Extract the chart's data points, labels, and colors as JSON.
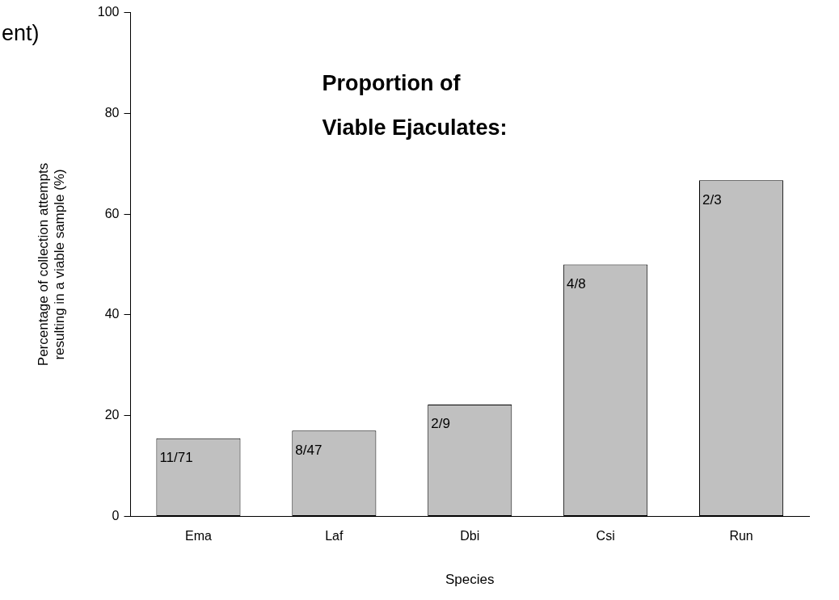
{
  "chart_data": {
    "type": "bar",
    "xlabel": "Species",
    "ylabel": "Percentage of collection attempts\nresulting in a viable sample (%)",
    "annotations": [
      "ent)",
      "Proportion of\nViable Ejaculates:",
      {
        "text": "11/71",
        "x": "Ema",
        "y": 15.5
      },
      {
        "text": "8/47",
        "x": "Laf",
        "y": 17
      },
      {
        "text": "2/9",
        "x": "Dbi",
        "y": 22.2
      },
      {
        "text": "4/8",
        "x": "Csi",
        "y": 50
      },
      {
        "text": "2/3",
        "x": "Run",
        "y": 66.7
      }
    ],
    "categories": [
      "Ema",
      "Laf",
      "Dbi",
      "Csi",
      "Run"
    ],
    "values": [
      15.5,
      17,
      22.2,
      50,
      66.7
    ],
    "color": "#c0c0c0",
    "ylim": [
      0,
      100
    ],
    "yticks": [
      0,
      20,
      40,
      60,
      80,
      100
    ],
    "grid": false,
    "legend": false
  }
}
